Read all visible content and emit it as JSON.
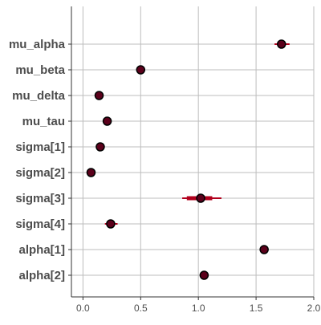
{
  "chart_data": {
    "type": "interval",
    "title": "",
    "xlabel": "",
    "ylabel": "",
    "xlim": [
      -0.1,
      2.0
    ],
    "x_ticks": [
      0.0,
      0.5,
      1.0,
      1.5,
      2.0
    ],
    "x_tick_labels": [
      "0.0",
      "0.5",
      "1.0",
      "1.5",
      "2.0"
    ],
    "grid": true,
    "colors": {
      "interval": "#b2001d",
      "point_fill": "#5b001b",
      "point_stroke": "#000000",
      "grid": "#bdbdbd",
      "axis": "#333333",
      "text": "#4d4d4d"
    },
    "parameters": [
      {
        "name": "mu_alpha",
        "estimate": 1.72,
        "inner": [
          1.69,
          1.75
        ],
        "outer": [
          1.66,
          1.79
        ]
      },
      {
        "name": "mu_beta",
        "estimate": 0.5,
        "inner": [
          0.49,
          0.51
        ],
        "outer": [
          0.48,
          0.52
        ]
      },
      {
        "name": "mu_delta",
        "estimate": 0.14,
        "inner": [
          0.12,
          0.16
        ],
        "outer": [
          0.11,
          0.17
        ]
      },
      {
        "name": "mu_tau",
        "estimate": 0.21,
        "inner": [
          0.19,
          0.23
        ],
        "outer": [
          0.18,
          0.24
        ]
      },
      {
        "name": "sigma[1]",
        "estimate": 0.15,
        "inner": [
          0.14,
          0.16
        ],
        "outer": [
          0.13,
          0.17
        ]
      },
      {
        "name": "sigma[2]",
        "estimate": 0.07,
        "inner": [
          0.06,
          0.08
        ],
        "outer": [
          0.05,
          0.09
        ]
      },
      {
        "name": "sigma[3]",
        "estimate": 1.02,
        "inner": [
          0.9,
          1.12
        ],
        "outer": [
          0.86,
          1.2
        ]
      },
      {
        "name": "sigma[4]",
        "estimate": 0.24,
        "inner": [
          0.21,
          0.27
        ],
        "outer": [
          0.19,
          0.3
        ]
      },
      {
        "name": "alpha[1]",
        "estimate": 1.57,
        "inner": [
          1.56,
          1.58
        ],
        "outer": [
          1.55,
          1.59
        ]
      },
      {
        "name": "alpha[2]",
        "estimate": 1.05,
        "inner": [
          1.04,
          1.06
        ],
        "outer": [
          1.03,
          1.07
        ]
      }
    ]
  }
}
